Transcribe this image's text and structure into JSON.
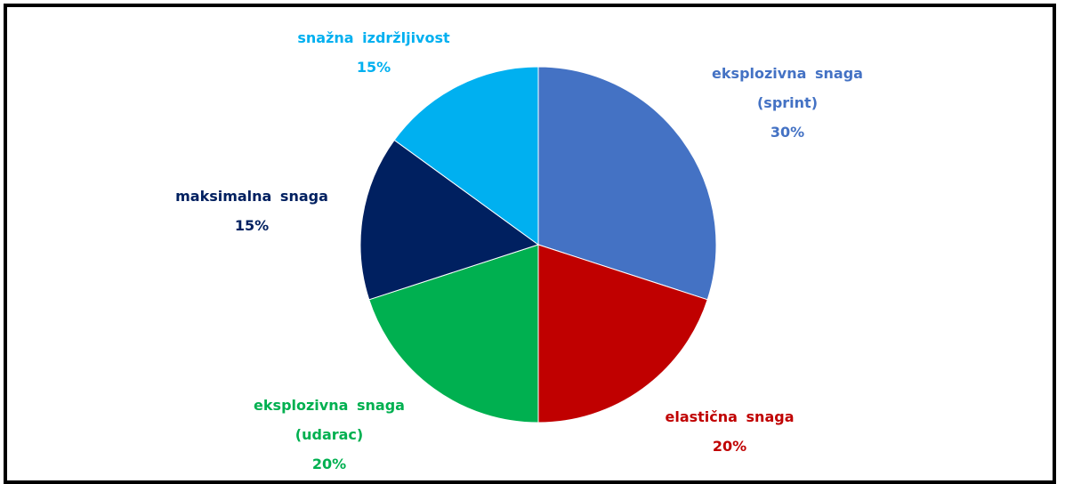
{
  "chart_data": {
    "type": "pie",
    "categories": [
      "eksplozivna snaga (sprint)",
      "elastična snaga",
      "eksplozivna snaga (udarac)",
      "maksimalna snaga",
      "snažna izdržljivost"
    ],
    "values": [
      30,
      20,
      20,
      15,
      15
    ],
    "value_labels": [
      "30%",
      "20%",
      "20%",
      "15%",
      "15%"
    ],
    "colors": [
      "#4472c4",
      "#c00000",
      "#00b050",
      "#002060",
      "#00b0f0"
    ]
  }
}
